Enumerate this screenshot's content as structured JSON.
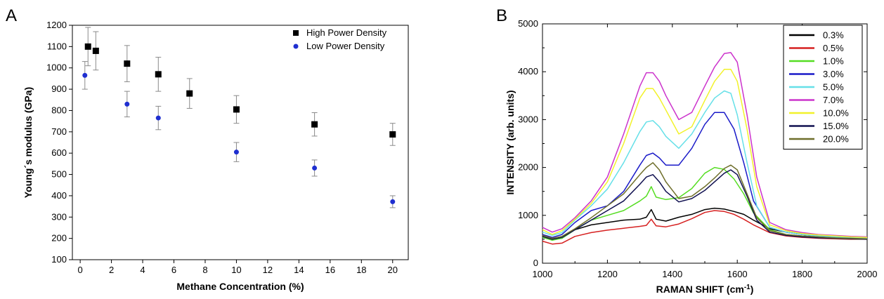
{
  "panels": {
    "a_label": "A",
    "b_label": "B"
  },
  "chart_data": [
    {
      "type": "scatter",
      "panel": "A",
      "xlabel": "Methane Concentration (%)",
      "ylabel": "Young´s modulus (GPa)",
      "xlim": [
        -0.5,
        21
      ],
      "ylim": [
        100,
        1200
      ],
      "xticks": [
        0,
        2,
        4,
        6,
        8,
        10,
        12,
        14,
        16,
        18,
        20
      ],
      "yticks": [
        100,
        200,
        300,
        400,
        500,
        600,
        700,
        800,
        900,
        1000,
        1100,
        1200
      ],
      "legend_position": "top-right",
      "series": [
        {
          "name": "High Power Density",
          "marker": "square",
          "color": "#000000",
          "points": [
            {
              "x": 0.5,
              "y": 1100,
              "err": 90
            },
            {
              "x": 1,
              "y": 1080,
              "err": 90
            },
            {
              "x": 3,
              "y": 1020,
              "err": 85
            },
            {
              "x": 5,
              "y": 970,
              "err": 80
            },
            {
              "x": 7,
              "y": 880,
              "err": 70
            },
            {
              "x": 10,
              "y": 805,
              "err": 65
            },
            {
              "x": 15,
              "y": 735,
              "err": 55
            },
            {
              "x": 20,
              "y": 688,
              "err": 52
            }
          ]
        },
        {
          "name": "Low Power Density",
          "marker": "circle",
          "color": "#1f2fd0",
          "points": [
            {
              "x": 0.3,
              "y": 965,
              "err": 65
            },
            {
              "x": 3,
              "y": 830,
              "err": 60
            },
            {
              "x": 5,
              "y": 765,
              "err": 55
            },
            {
              "x": 10,
              "y": 605,
              "err": 45
            },
            {
              "x": 15,
              "y": 530,
              "err": 38
            },
            {
              "x": 20,
              "y": 372,
              "err": 28
            }
          ]
        }
      ]
    },
    {
      "type": "line",
      "panel": "B",
      "xlabel": "RAMAN SHIFT (cm",
      "xlabel_sup": "-1",
      "xlabel_end": ")",
      "ylabel": "INTENSITY (arb. units)",
      "xlim": [
        1000,
        2000
      ],
      "ylim": [
        0,
        5000
      ],
      "xticks": [
        1000,
        1200,
        1400,
        1600,
        1800,
        2000
      ],
      "yticks": [
        0,
        1000,
        2000,
        3000,
        4000,
        5000
      ],
      "legend_position": "top-right",
      "series": [
        {
          "name": "0.3%",
          "color": "#000000",
          "x": [
            1000,
            1030,
            1060,
            1100,
            1150,
            1200,
            1250,
            1300,
            1320,
            1335,
            1350,
            1380,
            1420,
            1460,
            1500,
            1530,
            1560,
            1590,
            1620,
            1650,
            1700,
            1750,
            1800,
            1850,
            1900,
            1950,
            2000
          ],
          "y": [
            550,
            500,
            520,
            700,
            800,
            850,
            900,
            920,
            960,
            1120,
            920,
            880,
            960,
            1020,
            1120,
            1150,
            1130,
            1080,
            1020,
            900,
            720,
            650,
            600,
            570,
            540,
            520,
            510
          ]
        },
        {
          "name": "0.5%",
          "color": "#d62020",
          "x": [
            1000,
            1030,
            1060,
            1100,
            1150,
            1200,
            1250,
            1300,
            1320,
            1335,
            1350,
            1380,
            1420,
            1460,
            1500,
            1530,
            1560,
            1590,
            1620,
            1650,
            1700,
            1750,
            1800,
            1850,
            1900,
            1950,
            2000
          ],
          "y": [
            460,
            400,
            420,
            560,
            640,
            690,
            730,
            770,
            790,
            920,
            780,
            760,
            820,
            930,
            1060,
            1100,
            1080,
            1020,
            920,
            800,
            640,
            570,
            540,
            520,
            510,
            500,
            500
          ]
        },
        {
          "name": "1.0%",
          "color": "#55dd22",
          "x": [
            1000,
            1030,
            1060,
            1100,
            1150,
            1200,
            1250,
            1300,
            1320,
            1335,
            1350,
            1380,
            1420,
            1460,
            1500,
            1530,
            1560,
            1590,
            1620,
            1650,
            1700,
            1750,
            1800,
            1850,
            1900,
            1950,
            2000
          ],
          "y": [
            540,
            480,
            520,
            700,
            900,
            1000,
            1100,
            1300,
            1400,
            1600,
            1380,
            1330,
            1370,
            1560,
            1880,
            2000,
            1960,
            1760,
            1450,
            1050,
            700,
            600,
            560,
            540,
            520,
            510,
            500
          ]
        },
        {
          "name": "3.0%",
          "color": "#1a1ac8",
          "x": [
            1000,
            1030,
            1060,
            1100,
            1150,
            1200,
            1250,
            1300,
            1320,
            1340,
            1360,
            1380,
            1420,
            1460,
            1500,
            1530,
            1560,
            1590,
            1620,
            1650,
            1700,
            1750,
            1800,
            1850,
            1900,
            1950,
            2000
          ],
          "y": [
            600,
            540,
            600,
            850,
            1100,
            1200,
            1500,
            2050,
            2250,
            2300,
            2200,
            2050,
            2050,
            2400,
            2900,
            3150,
            3150,
            2800,
            2100,
            1300,
            750,
            650,
            600,
            570,
            550,
            530,
            520
          ]
        },
        {
          "name": "5.0%",
          "color": "#66e0e8",
          "x": [
            1000,
            1030,
            1060,
            1100,
            1150,
            1200,
            1250,
            1300,
            1320,
            1340,
            1360,
            1380,
            1420,
            1460,
            1500,
            1530,
            1560,
            1580,
            1600,
            1630,
            1660,
            1700,
            1750,
            1800,
            1850,
            1900,
            1950,
            2000
          ],
          "y": [
            650,
            580,
            640,
            900,
            1200,
            1550,
            2100,
            2750,
            2950,
            2980,
            2850,
            2650,
            2400,
            2700,
            3150,
            3450,
            3600,
            3550,
            3100,
            2100,
            1200,
            750,
            650,
            600,
            570,
            550,
            530,
            520
          ]
        },
        {
          "name": "7.0%",
          "color": "#cc33cc",
          "x": [
            1000,
            1030,
            1060,
            1100,
            1150,
            1200,
            1250,
            1300,
            1320,
            1340,
            1360,
            1380,
            1420,
            1460,
            1500,
            1530,
            1560,
            1580,
            1600,
            1630,
            1660,
            1700,
            1750,
            1800,
            1850,
            1900,
            1950,
            2000
          ],
          "y": [
            750,
            650,
            720,
            950,
            1300,
            1800,
            2700,
            3700,
            3980,
            3980,
            3800,
            3500,
            3000,
            3150,
            3700,
            4100,
            4380,
            4400,
            4200,
            3100,
            1800,
            850,
            700,
            640,
            600,
            580,
            560,
            550
          ]
        },
        {
          "name": "10.0%",
          "color": "#f2f22a",
          "x": [
            1000,
            1030,
            1060,
            1100,
            1150,
            1200,
            1250,
            1300,
            1320,
            1340,
            1360,
            1380,
            1420,
            1460,
            1500,
            1530,
            1560,
            1580,
            1600,
            1630,
            1660,
            1700,
            1750,
            1800,
            1850,
            1900,
            1950,
            2000
          ],
          "y": [
            700,
            600,
            680,
            920,
            1250,
            1700,
            2500,
            3450,
            3650,
            3650,
            3450,
            3200,
            2700,
            2850,
            3400,
            3800,
            4050,
            4050,
            3800,
            2800,
            1600,
            800,
            680,
            620,
            590,
            570,
            550,
            540
          ]
        },
        {
          "name": "15.0%",
          "color": "#101050",
          "x": [
            1000,
            1030,
            1060,
            1100,
            1150,
            1200,
            1250,
            1300,
            1320,
            1340,
            1360,
            1380,
            1420,
            1460,
            1500,
            1530,
            1560,
            1580,
            1600,
            1630,
            1660,
            1700,
            1750,
            1800,
            1850,
            1900,
            1950,
            2000
          ],
          "y": [
            560,
            500,
            540,
            700,
            900,
            1100,
            1300,
            1650,
            1800,
            1850,
            1700,
            1500,
            1280,
            1350,
            1520,
            1700,
            1880,
            1950,
            1850,
            1400,
            900,
            650,
            580,
            550,
            530,
            520,
            510,
            500
          ]
        },
        {
          "name": "20.0%",
          "color": "#6e6e2a",
          "x": [
            1000,
            1030,
            1060,
            1100,
            1150,
            1200,
            1250,
            1300,
            1320,
            1340,
            1360,
            1380,
            1420,
            1460,
            1500,
            1530,
            1560,
            1580,
            1600,
            1630,
            1660,
            1700,
            1750,
            1800,
            1850,
            1900,
            1950,
            2000
          ],
          "y": [
            580,
            520,
            560,
            720,
            950,
            1200,
            1450,
            1850,
            2000,
            2100,
            1950,
            1700,
            1350,
            1400,
            1600,
            1780,
            1980,
            2050,
            1950,
            1450,
            950,
            680,
            600,
            570,
            550,
            530,
            520,
            510
          ]
        }
      ]
    }
  ]
}
